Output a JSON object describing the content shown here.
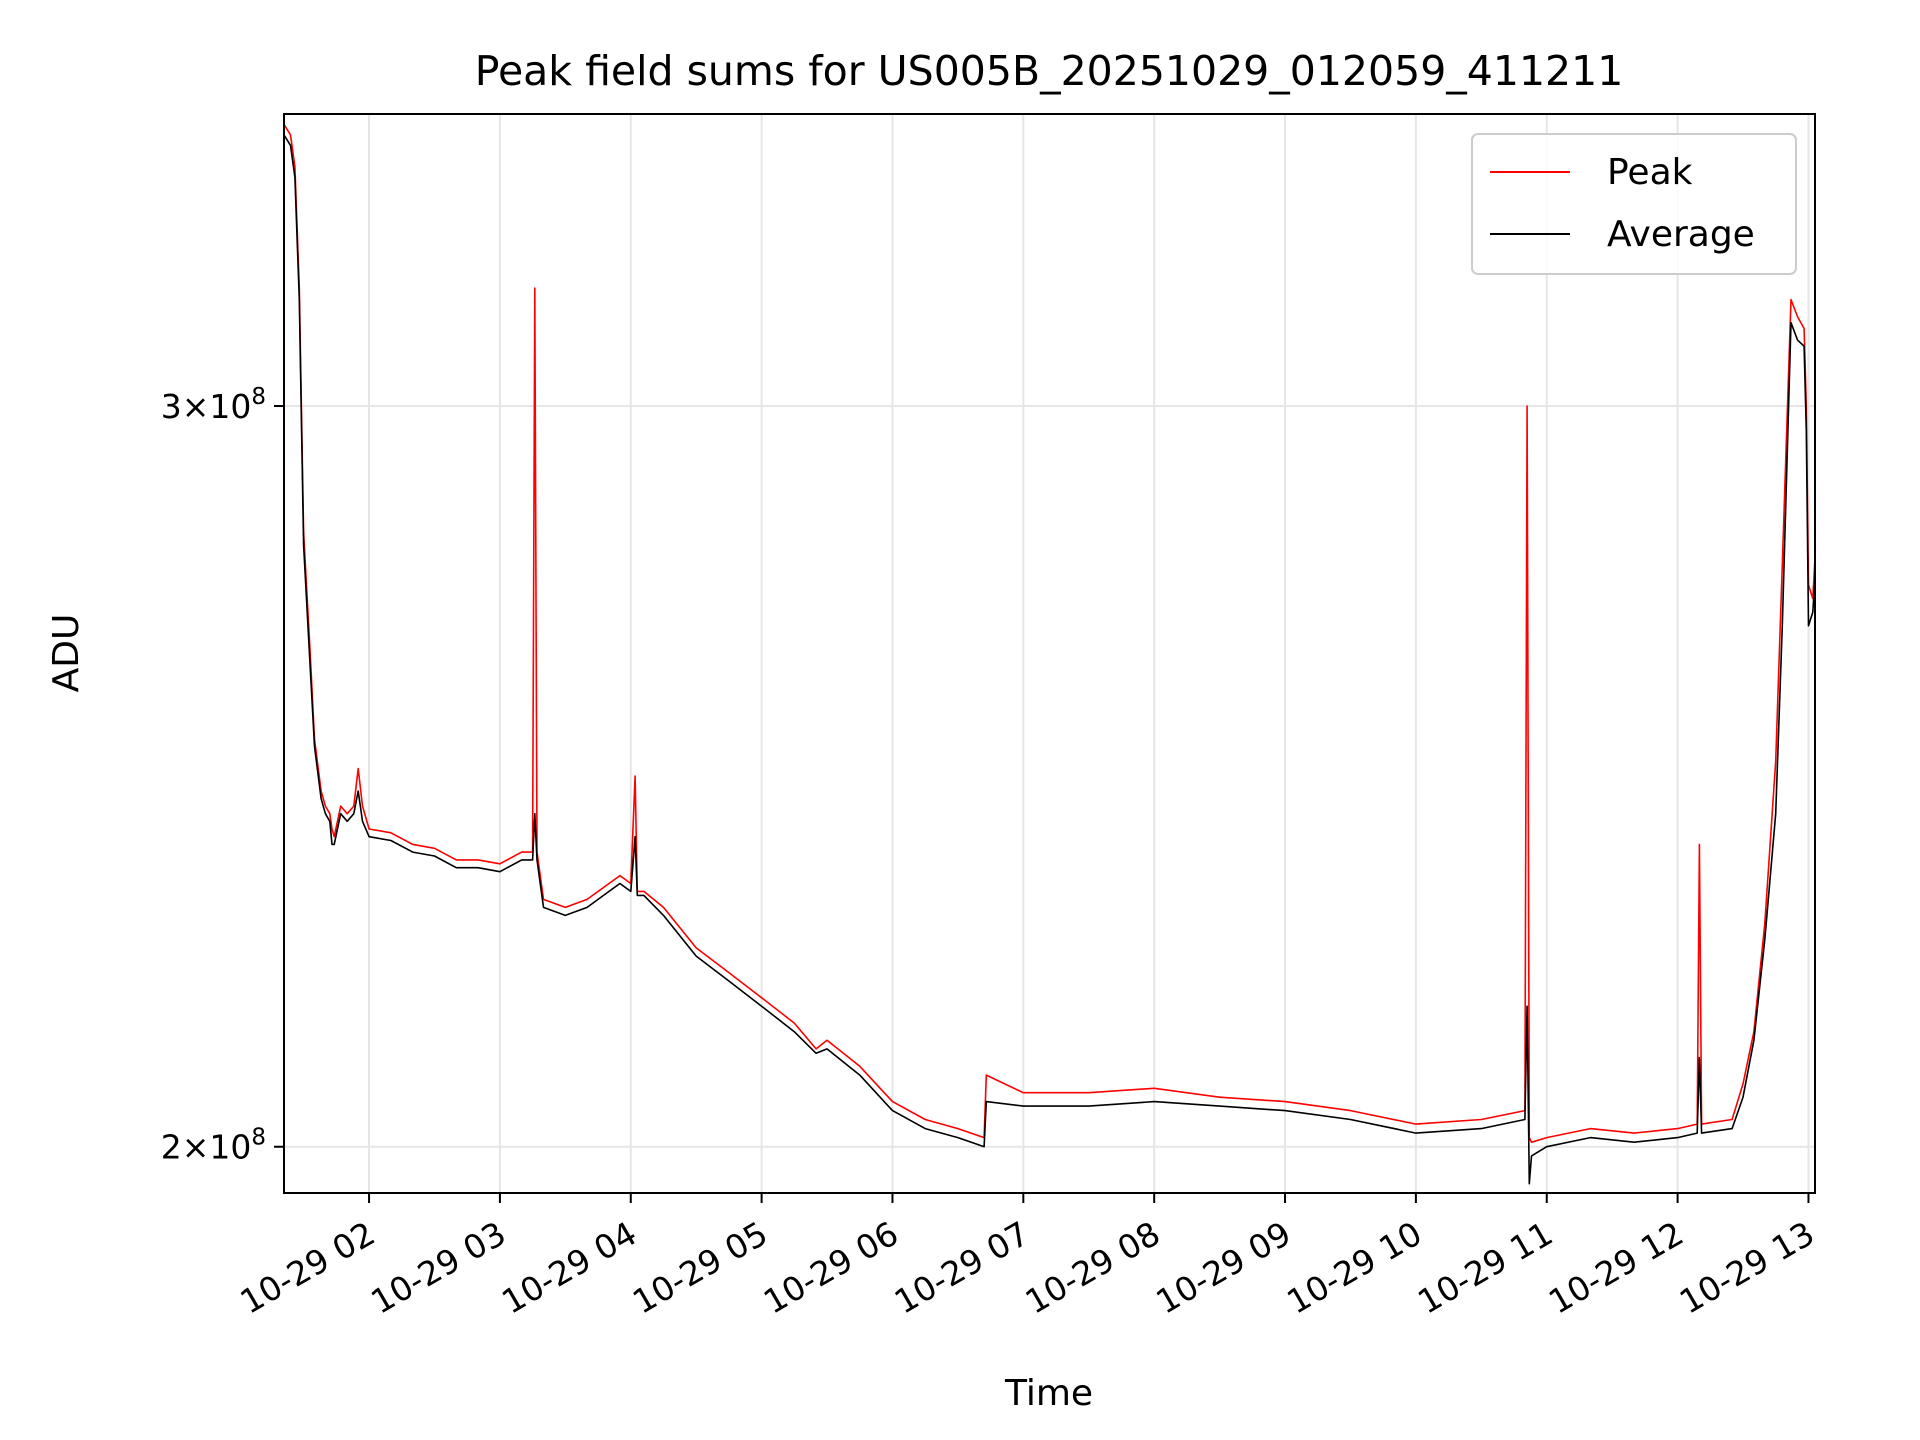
{
  "chart_data": {
    "type": "line",
    "title": "Peak field sums for US005B_20251029_012059_411211",
    "xlabel": "Time",
    "ylabel": "ADU",
    "y_scale": "log",
    "grid": true,
    "legend_position": "top-right",
    "xlim": [
      "2025-10-29 01:21",
      "2025-10-29 13:03"
    ],
    "ylim": [
      195000000,
      352000000
    ],
    "x_ticks": [
      {
        "value": "2025-10-29 02:00",
        "label": "10-29 02"
      },
      {
        "value": "2025-10-29 03:00",
        "label": "10-29 03"
      },
      {
        "value": "2025-10-29 04:00",
        "label": "10-29 04"
      },
      {
        "value": "2025-10-29 05:00",
        "label": "10-29 05"
      },
      {
        "value": "2025-10-29 06:00",
        "label": "10-29 06"
      },
      {
        "value": "2025-10-29 07:00",
        "label": "10-29 07"
      },
      {
        "value": "2025-10-29 08:00",
        "label": "10-29 08"
      },
      {
        "value": "2025-10-29 09:00",
        "label": "10-29 09"
      },
      {
        "value": "2025-10-29 10:00",
        "label": "10-29 10"
      },
      {
        "value": "2025-10-29 11:00",
        "label": "10-29 11"
      },
      {
        "value": "2025-10-29 12:00",
        "label": "10-29 12"
      },
      {
        "value": "2025-10-29 13:00",
        "label": "10-29 13"
      }
    ],
    "y_ticks": [
      {
        "value": 200000000,
        "mantissa": "2",
        "times": "×10",
        "exponent": "8"
      },
      {
        "value": 300000000,
        "mantissa": "3",
        "times": "×10",
        "exponent": "8"
      }
    ],
    "series": [
      {
        "name": "Peak",
        "color": "#ff0000",
        "x": [
          "2025-10-29 01:21",
          "2025-10-29 01:24",
          "2025-10-29 01:26",
          "2025-10-29 01:28",
          "2025-10-29 01:30",
          "2025-10-29 01:33",
          "2025-10-29 01:35",
          "2025-10-29 01:38",
          "2025-10-29 01:40",
          "2025-10-29 01:42",
          "2025-10-29 01:43",
          "2025-10-29 01:44",
          "2025-10-29 01:47",
          "2025-10-29 01:50",
          "2025-10-29 01:53",
          "2025-10-29 01:55",
          "2025-10-29 01:57",
          "2025-10-29 02:00",
          "2025-10-29 02:10",
          "2025-10-29 02:20",
          "2025-10-29 02:30",
          "2025-10-29 02:40",
          "2025-10-29 02:50",
          "2025-10-29 03:00",
          "2025-10-29 03:10",
          "2025-10-29 03:15",
          "2025-10-29 03:16",
          "2025-10-29 03:17",
          "2025-10-29 03:20",
          "2025-10-29 03:30",
          "2025-10-29 03:40",
          "2025-10-29 03:50",
          "2025-10-29 03:55",
          "2025-10-29 04:00",
          "2025-10-29 04:02",
          "2025-10-29 04:03",
          "2025-10-29 04:04",
          "2025-10-29 04:06",
          "2025-10-29 04:15",
          "2025-10-29 04:30",
          "2025-10-29 04:45",
          "2025-10-29 05:00",
          "2025-10-29 05:15",
          "2025-10-29 05:25",
          "2025-10-29 05:30",
          "2025-10-29 05:45",
          "2025-10-29 06:00",
          "2025-10-29 06:15",
          "2025-10-29 06:30",
          "2025-10-29 06:42",
          "2025-10-29 06:43",
          "2025-10-29 07:00",
          "2025-10-29 07:30",
          "2025-10-29 08:00",
          "2025-10-29 08:30",
          "2025-10-29 09:00",
          "2025-10-29 09:30",
          "2025-10-29 10:00",
          "2025-10-29 10:30",
          "2025-10-29 10:50",
          "2025-10-29 10:51",
          "2025-10-29 10:52",
          "2025-10-29 10:53",
          "2025-10-29 11:00",
          "2025-10-29 11:20",
          "2025-10-29 11:40",
          "2025-10-29 12:00",
          "2025-10-29 12:09",
          "2025-10-29 12:10",
          "2025-10-29 12:11",
          "2025-10-29 12:25",
          "2025-10-29 12:30",
          "2025-10-29 12:35",
          "2025-10-29 12:40",
          "2025-10-29 12:45",
          "2025-10-29 12:48",
          "2025-10-29 12:52",
          "2025-10-29 12:55",
          "2025-10-29 12:58",
          "2025-10-29 12:59",
          "2025-10-29 13:00",
          "2025-10-29 13:02",
          "2025-10-29 13:03"
        ],
        "values": [
          350000000,
          348000000,
          342000000,
          320000000,
          280000000,
          262000000,
          250000000,
          243000000,
          241000000,
          240000000,
          238000000,
          237000000,
          241000000,
          240000000,
          241000000,
          246000000,
          241000000,
          238000000,
          237500000,
          236000000,
          235500000,
          234000000,
          234000000,
          233500000,
          235000000,
          235000000,
          320000000,
          235000000,
          229000000,
          228000000,
          229000000,
          231000000,
          232000000,
          231000000,
          245000000,
          230000000,
          230000000,
          230000000,
          228000000,
          223000000,
          220000000,
          217000000,
          214000000,
          211000000,
          212000000,
          209000000,
          205000000,
          203000000,
          202000000,
          201000000,
          208000000,
          206000000,
          206000000,
          206500000,
          205500000,
          205000000,
          204000000,
          202500000,
          203000000,
          204000000,
          300000000,
          201000000,
          200500000,
          201000000,
          202000000,
          201500000,
          202000000,
          202500000,
          236000000,
          202500000,
          203000000,
          207000000,
          213000000,
          226000000,
          247000000,
          275000000,
          318000000,
          315000000,
          313000000,
          300000000,
          272000000,
          270000000,
          276000000
        ]
      },
      {
        "name": "Average",
        "color": "#000000",
        "x": [
          "2025-10-29 01:21",
          "2025-10-29 01:24",
          "2025-10-29 01:26",
          "2025-10-29 01:28",
          "2025-10-29 01:30",
          "2025-10-29 01:33",
          "2025-10-29 01:35",
          "2025-10-29 01:38",
          "2025-10-29 01:40",
          "2025-10-29 01:42",
          "2025-10-29 01:43",
          "2025-10-29 01:44",
          "2025-10-29 01:47",
          "2025-10-29 01:50",
          "2025-10-29 01:53",
          "2025-10-29 01:55",
          "2025-10-29 01:57",
          "2025-10-29 02:00",
          "2025-10-29 02:10",
          "2025-10-29 02:20",
          "2025-10-29 02:30",
          "2025-10-29 02:40",
          "2025-10-29 02:50",
          "2025-10-29 03:00",
          "2025-10-29 03:10",
          "2025-10-29 03:15",
          "2025-10-29 03:16",
          "2025-10-29 03:17",
          "2025-10-29 03:20",
          "2025-10-29 03:30",
          "2025-10-29 03:40",
          "2025-10-29 03:50",
          "2025-10-29 03:55",
          "2025-10-29 04:00",
          "2025-10-29 04:02",
          "2025-10-29 04:03",
          "2025-10-29 04:04",
          "2025-10-29 04:06",
          "2025-10-29 04:15",
          "2025-10-29 04:30",
          "2025-10-29 04:45",
          "2025-10-29 05:00",
          "2025-10-29 05:15",
          "2025-10-29 05:25",
          "2025-10-29 05:30",
          "2025-10-29 05:45",
          "2025-10-29 06:00",
          "2025-10-29 06:15",
          "2025-10-29 06:30",
          "2025-10-29 06:42",
          "2025-10-29 06:43",
          "2025-10-29 07:00",
          "2025-10-29 07:30",
          "2025-10-29 08:00",
          "2025-10-29 08:30",
          "2025-10-29 09:00",
          "2025-10-29 09:30",
          "2025-10-29 10:00",
          "2025-10-29 10:30",
          "2025-10-29 10:50",
          "2025-10-29 10:51",
          "2025-10-29 10:52",
          "2025-10-29 10:53",
          "2025-10-29 11:00",
          "2025-10-29 11:20",
          "2025-10-29 11:40",
          "2025-10-29 12:00",
          "2025-10-29 12:09",
          "2025-10-29 12:10",
          "2025-10-29 12:11",
          "2025-10-29 12:25",
          "2025-10-29 12:30",
          "2025-10-29 12:35",
          "2025-10-29 12:40",
          "2025-10-29 12:45",
          "2025-10-29 12:48",
          "2025-10-29 12:52",
          "2025-10-29 12:55",
          "2025-10-29 12:58",
          "2025-10-29 12:59",
          "2025-10-29 13:00",
          "2025-10-29 13:02",
          "2025-10-29 13:03"
        ],
        "values": [
          348000000,
          346000000,
          340000000,
          318000000,
          278000000,
          260000000,
          249000000,
          242000000,
          240000000,
          239000000,
          236000000,
          236000000,
          240000000,
          239000000,
          240000000,
          243000000,
          239000000,
          237000000,
          236500000,
          235000000,
          234500000,
          233000000,
          233000000,
          232500000,
          234000000,
          234000000,
          240000000,
          234000000,
          228000000,
          227000000,
          228000000,
          230000000,
          231000000,
          230000000,
          237000000,
          229500000,
          229500000,
          229500000,
          227000000,
          222000000,
          219000000,
          216000000,
          213000000,
          210500000,
          211000000,
          208000000,
          204000000,
          202000000,
          201000000,
          200000000,
          205000000,
          204500000,
          204500000,
          205000000,
          204500000,
          204000000,
          203000000,
          201500000,
          202000000,
          203000000,
          216000000,
          196000000,
          199000000,
          200000000,
          201000000,
          200500000,
          201000000,
          201500000,
          210000000,
          201500000,
          202000000,
          205500000,
          212000000,
          224000000,
          240000000,
          266000000,
          314000000,
          311000000,
          310000000,
          296000000,
          266000000,
          268000000,
          273000000
        ]
      }
    ]
  }
}
